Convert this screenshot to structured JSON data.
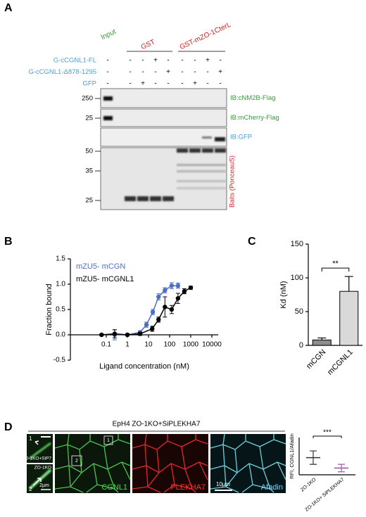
{
  "panel_labels": [
    "A",
    "B",
    "C",
    "D"
  ],
  "blot": {
    "lane_groups": [
      "Input",
      "GST",
      "GST-mZO-1CterL"
    ],
    "rows": [
      {
        "label": "G-cCGNL1-FL",
        "marks": [
          "-",
          "-",
          "-",
          "+",
          "-",
          "-",
          "-",
          "+",
          "-"
        ]
      },
      {
        "label": "G-cCGNL1-Δ878-1295",
        "marks": [
          "-",
          "-",
          "-",
          "-",
          "+",
          "-",
          "-",
          "-",
          "+"
        ]
      },
      {
        "label": "GFP",
        "marks": [
          "-",
          "-",
          "+",
          "-",
          "-",
          "-",
          "+",
          "-",
          "-"
        ]
      }
    ],
    "boxes": [
      {
        "markers": [
          250
        ],
        "label": "IB:cNM2B-Flag"
      },
      {
        "markers": [
          25
        ],
        "label": "IB:mCherry-Flag"
      },
      {
        "markers": [],
        "label": "IB:GFP"
      },
      {
        "markers": [
          50,
          35,
          25
        ],
        "label": "Baits (PonceauS)"
      }
    ]
  },
  "chart_data": [
    {
      "type": "line",
      "x_label": "Ligand concentration (nM)",
      "y_label": "Fraction bound",
      "xscale": "log",
      "xlim": [
        0.002,
        20000
      ],
      "xticks": [
        0.1,
        1,
        10,
        100,
        1000,
        10000
      ],
      "ylim": [
        -0.5,
        1.5
      ],
      "yticks": [
        -0.5,
        {
          "value": 0,
          "label": "0.0"
        },
        0.5,
        {
          "value": 1,
          "label": "1.0"
        },
        1.5
      ],
      "legend": "upper left",
      "series": [
        {
          "name": "mZU5- mCGN",
          "color": "#4a6fc4",
          "x": [
            0.25,
            1,
            4,
            8,
            16,
            30,
            60,
            125,
            250
          ],
          "values": [
            0.0,
            0.0,
            0.05,
            0.2,
            0.45,
            0.75,
            0.88,
            0.97,
            0.97
          ],
          "errors": [
            0.1,
            0.02,
            0.03,
            0.05,
            0.05,
            0.06,
            0.05,
            0.06,
            0.05
          ]
        },
        {
          "name": "mZU5- mCGNL1",
          "color": "#000000",
          "x": [
            0.06,
            0.25,
            1,
            4,
            15,
            30,
            60,
            125,
            250,
            500,
            1000
          ],
          "values": [
            0.0,
            0.02,
            0.0,
            0.02,
            0.12,
            0.3,
            0.55,
            0.5,
            0.72,
            0.86,
            0.93
          ],
          "errors": [
            0.02,
            0.08,
            0.02,
            0.03,
            0.05,
            0.05,
            0.2,
            0.08,
            0.1,
            0.05,
            0.03
          ]
        }
      ]
    },
    {
      "type": "bar",
      "y_label": "Kd (nM)",
      "categories": [
        "mCGN",
        "mCGNL1"
      ],
      "values": [
        8,
        80
      ],
      "errors": [
        3,
        22
      ],
      "colors": [
        "#8c8c8c",
        "#d9d9d9"
      ],
      "ylim": [
        0,
        150
      ],
      "yticks": [
        0,
        50,
        100,
        150
      ],
      "annotation": "**"
    },
    {
      "type": "dot",
      "y_label": "RFI, CGNL1/Afadin",
      "categories": [
        "ZO-1KO",
        "ZO-1KO+ SiPLEKHA7"
      ],
      "values": [
        1.15,
        0.45
      ],
      "errors": [
        0.45,
        0.25
      ],
      "colors": [
        "#333333",
        "#a05aa8"
      ],
      "ylim": [
        0,
        2.5
      ],
      "annotation": "***"
    }
  ],
  "microscopy": {
    "title": "EpH4 ZO-1KO+SiPLEKHA7",
    "channels": [
      "CGNL1",
      "PLEKHA7",
      "Afadin"
    ],
    "scale_bar": "10μm",
    "inset_scale_bar": "2μm",
    "inset_labels": [
      "ZO-1KO+SiP7",
      "ZO-1KO"
    ],
    "inset_numbers": [
      "1",
      "2"
    ]
  }
}
